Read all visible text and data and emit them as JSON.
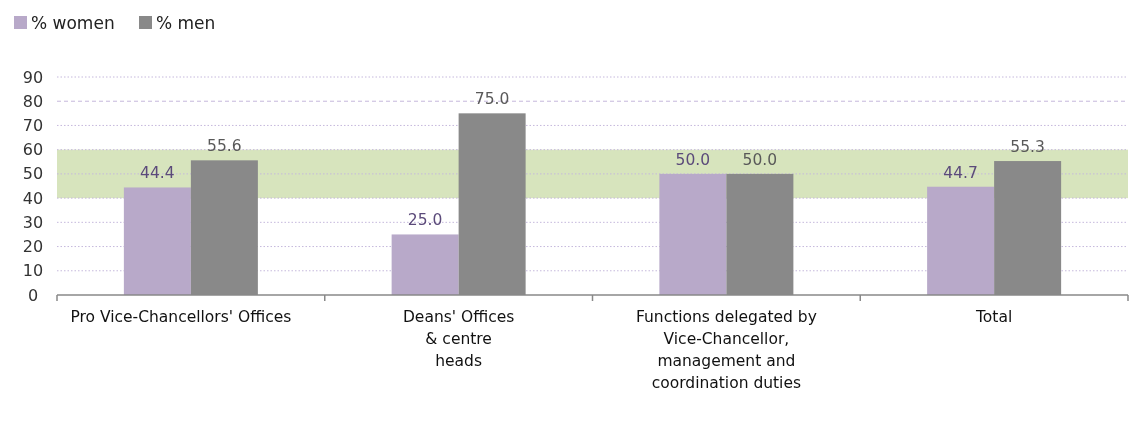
{
  "chart_data": {
    "type": "bar",
    "categories": [
      "Pro Vice-Chancellors' Offices",
      "Deans' Offices\n& centre\nheads",
      "Functions delegated by\nVice-Chancellor,\nmanagement and\ncoordination duties",
      "Total"
    ],
    "series": [
      {
        "name": "% women",
        "color": "#b8a9c9",
        "values": [
          44.4,
          25.0,
          50.0,
          44.7
        ],
        "value_labels": [
          "44.4",
          "25.0",
          "50.0",
          "44.7"
        ]
      },
      {
        "name": "% men",
        "color": "#898989",
        "values": [
          55.6,
          75.0,
          50.0,
          55.3
        ],
        "value_labels": [
          "55.6",
          "75.0",
          "50.0",
          "55.3"
        ]
      }
    ],
    "ylim": [
      0,
      90
    ],
    "yticks": [
      0,
      10,
      20,
      30,
      40,
      50,
      60,
      70,
      80,
      90
    ],
    "grid": "y",
    "legend": "top left",
    "bands": [
      {
        "axis": "y",
        "from": 40,
        "to": 60,
        "color": "#d7e4bd"
      }
    ]
  }
}
